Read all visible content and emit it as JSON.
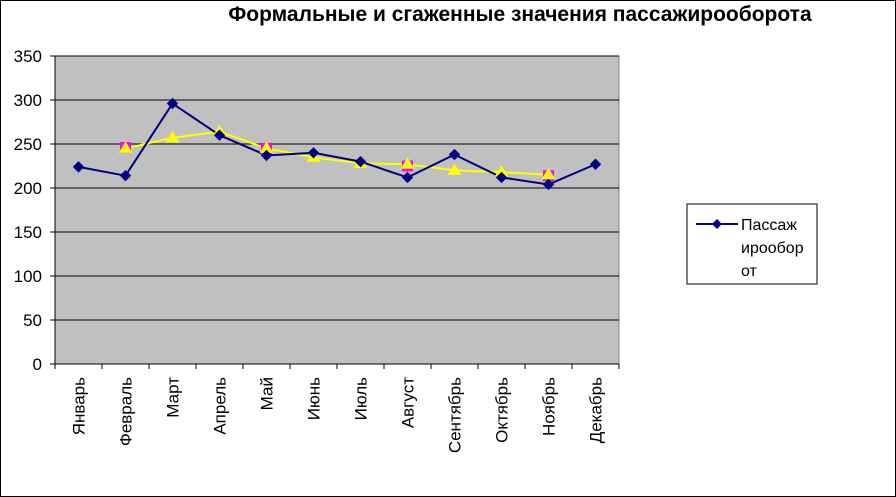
{
  "chart_data": {
    "type": "line",
    "title": "Формальные и сгаженные значения пассажирооборота",
    "categories": [
      "Январь",
      "Февраль",
      "Март",
      "Апрель",
      "Май",
      "Июнь",
      "Июль",
      "Август",
      "Сентябрь",
      "Октябрь",
      "Ноябрь",
      "Декабрь"
    ],
    "ylim": [
      0,
      350
    ],
    "yticks": [
      0,
      50,
      100,
      150,
      200,
      250,
      300,
      350
    ],
    "grid": true,
    "legend_position": "right",
    "series": [
      {
        "name": "Пассажирооборот",
        "legend_lines": [
          "Пассаж",
          "ирообор",
          "от"
        ],
        "color": "#000080",
        "marker": "diamond",
        "values": [
          224,
          214,
          296,
          260,
          237,
          240,
          230,
          212,
          238,
          212,
          204,
          227
        ]
      },
      {
        "color": "#ffff00",
        "marker": "triangle",
        "values": [
          null,
          245,
          257,
          264,
          245,
          235,
          228,
          227,
          220,
          218,
          215,
          null
        ]
      },
      {
        "color": "#ff00ff",
        "marker": "square",
        "values": [
          null,
          246,
          null,
          null,
          245,
          null,
          null,
          225,
          null,
          null,
          214,
          null
        ]
      }
    ]
  }
}
